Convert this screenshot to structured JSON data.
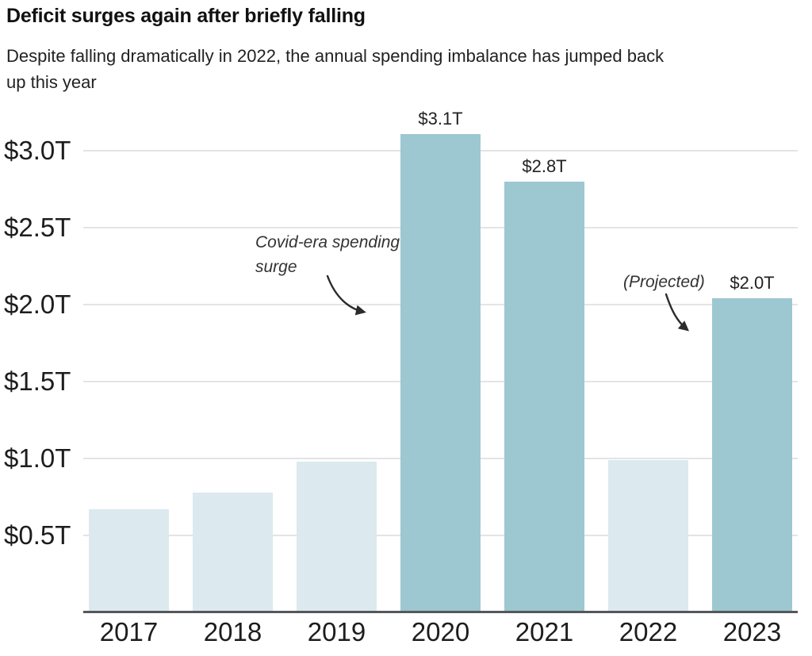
{
  "chart_data": {
    "type": "bar",
    "title": "Deficit surges again after briefly falling",
    "subtitle": "Despite falling dramatically in 2022, the annual spending imbalance has jumped back\nup this year",
    "categories": [
      "2017",
      "2018",
      "2019",
      "2020",
      "2021",
      "2022",
      "2023"
    ],
    "values": [
      0.67,
      0.78,
      0.98,
      3.11,
      2.8,
      0.99,
      2.04
    ],
    "bar_value_labels": [
      "",
      "",
      "",
      "$3.1T",
      "$2.8T",
      "",
      "$2.0T"
    ],
    "bar_emphasis": [
      "muted",
      "muted",
      "muted",
      "highlight",
      "highlight",
      "muted",
      "highlight"
    ],
    "y_ticks": [
      {
        "value": 0.5,
        "label": "$0.5T"
      },
      {
        "value": 1.0,
        "label": "$1.0T"
      },
      {
        "value": 1.5,
        "label": "$1.5T"
      },
      {
        "value": 2.0,
        "label": "$2.0T"
      },
      {
        "value": 2.5,
        "label": "$2.5T"
      },
      {
        "value": 3.0,
        "label": "$3.0T"
      }
    ],
    "ylim": [
      0,
      3.27
    ],
    "xlabel": "",
    "ylabel": "",
    "grid": "horizontal",
    "legend": "none",
    "annotations": [
      {
        "text": "Covid-era spending surge",
        "target": "2020"
      },
      {
        "text": "(Projected)",
        "target": "2023"
      }
    ],
    "colors": {
      "bar_muted": "#dce9ee",
      "bar_highlight": "#9dc7d1",
      "gridline": "#e4e4e4",
      "axis_line": "#54575b",
      "text": "#1d1d1f",
      "annotation_text": "#333333",
      "arrow": "#2b2b2b"
    }
  }
}
